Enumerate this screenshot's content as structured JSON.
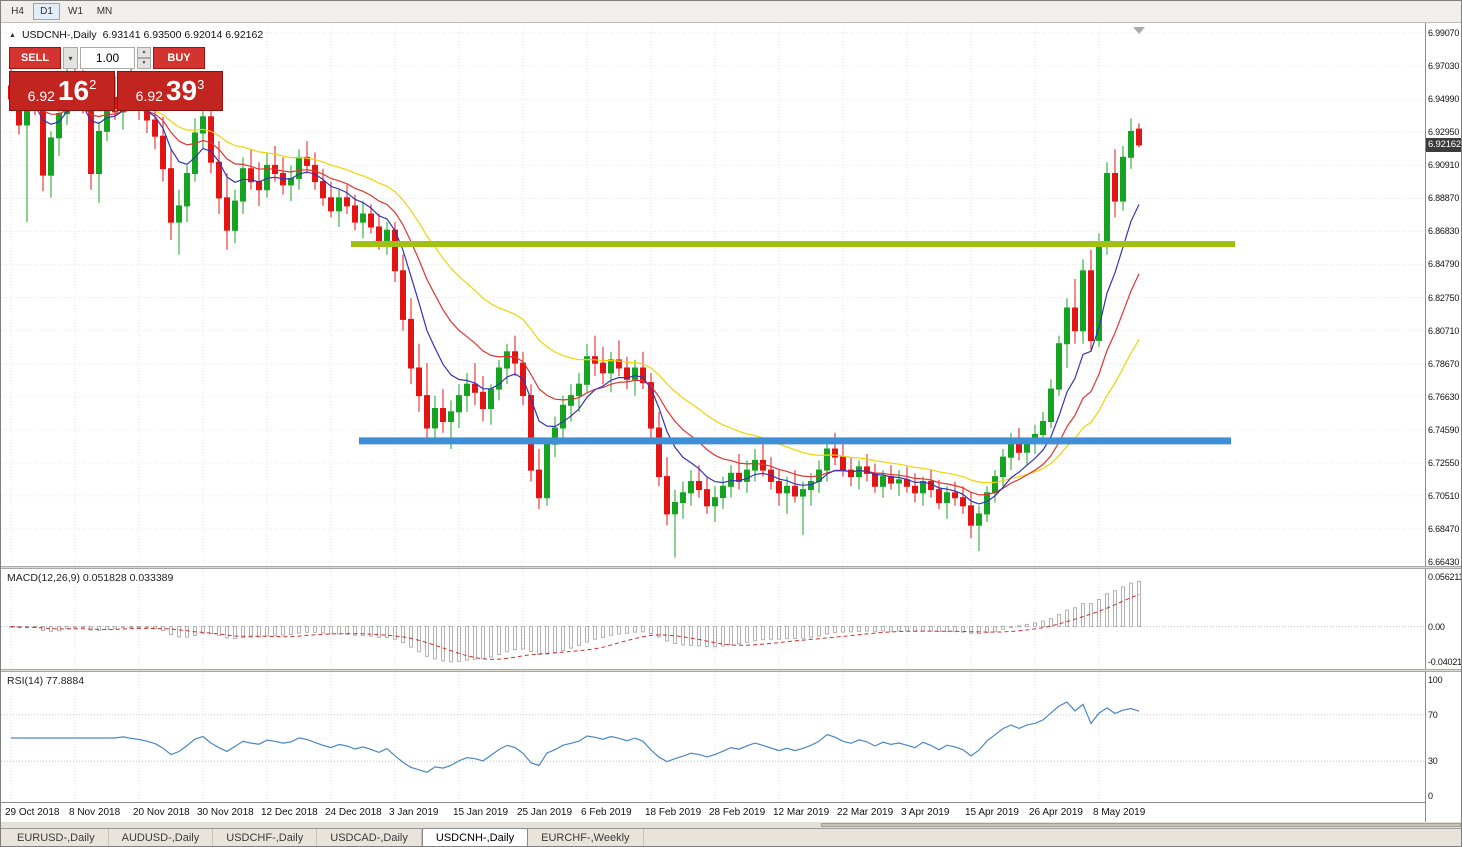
{
  "colors": {
    "bull": "#17a322",
    "bear": "#e31414",
    "macd_hist": "#b2b2b2",
    "macd_signal": "#cf2f2a",
    "rsi_line": "#4a86c6",
    "grid": "#e6e6e6",
    "trade_red": "#c2251f",
    "price_badge_bg": "#3c3c3c"
  },
  "icons": {
    "caret_down": "▾",
    "up": "▲",
    "down": "▼",
    "collapse": "▲"
  },
  "toolbar": {
    "timeframes": [
      {
        "label": "H4",
        "active": false
      },
      {
        "label": "D1",
        "active": true
      },
      {
        "label": "W1",
        "active": false
      },
      {
        "label": "MN",
        "active": false
      }
    ]
  },
  "header": {
    "title": "USDCNH-,Daily",
    "ohlc": "6.93141 6.93500 6.92014 6.92162"
  },
  "trade_panel": {
    "sell_label": "SELL",
    "buy_label": "BUY",
    "volume": "1.00",
    "bid": {
      "prefix": "6.92",
      "big": "16",
      "sup": "2"
    },
    "ask": {
      "prefix": "6.92",
      "big": "39",
      "sup": "3"
    }
  },
  "price_marker": "6.92162",
  "indicators": {
    "macd_label": "MACD(12,26,9) 0.051828 0.033389",
    "rsi_label": "RSI(14) 77.8884"
  },
  "price_axis": [
    "6.99070",
    "6.97030",
    "6.94990",
    "6.92950",
    "6.90910",
    "6.88870",
    "6.86830",
    "6.84790",
    "6.82750",
    "6.80710",
    "6.78670",
    "6.76630",
    "6.74590",
    "6.72550",
    "6.70510",
    "6.68470",
    "6.66430"
  ],
  "time_axis": [
    "29 Oct 2018",
    "8 Nov 2018",
    "20 Nov 2018",
    "30 Nov 2018",
    "12 Dec 2018",
    "24 Dec 2018",
    "3 Jan 2019",
    "15 Jan 2019",
    "25 Jan 2019",
    "6 Feb 2019",
    "18 Feb 2019",
    "28 Feb 2019",
    "12 Mar 2019",
    "22 Mar 2019",
    "3 Apr 2019",
    "15 Apr 2019",
    "26 Apr 2019",
    "8 May 2019"
  ],
  "macd": {
    "axis_values": [
      "0.056211",
      "0.00",
      "-0.040218"
    ]
  },
  "rsi": {
    "axis_values": [
      "100",
      "70",
      "30",
      "0"
    ]
  },
  "tabs": [
    {
      "label": "EURUSD-,Daily",
      "active": false
    },
    {
      "label": "AUDUSD-,Daily",
      "active": false
    },
    {
      "label": "USDCHF-,Daily",
      "active": false
    },
    {
      "label": "USDCAD-,Daily",
      "active": false
    },
    {
      "label": "USDCNH-,Daily",
      "active": true
    },
    {
      "label": "EURCHF-,Weekly",
      "active": false
    }
  ],
  "chart_data": {
    "type": "candlestick",
    "symbol": "USDCNH",
    "period": "Daily",
    "scale": {
      "top_price": 6.9907,
      "bottom_price": 6.6643
    },
    "label_every_n_candles": 8,
    "moving_averages": [
      {
        "name": "slow",
        "period": 30,
        "color": "#efd302"
      },
      {
        "name": "medium",
        "period": 16,
        "color": "#e03434"
      },
      {
        "name": "fast",
        "period": 8,
        "color": "#3434b8"
      }
    ],
    "hlines": [
      {
        "name": "resistance",
        "price": 6.8605,
        "color": "#a2c011",
        "from_candle": 42.5,
        "to_candle": 153,
        "thickness": 6
      },
      {
        "name": "support",
        "price": 6.739,
        "color": "#3f8fd6",
        "from_candle": 43.5,
        "to_candle": 152.5,
        "thickness": 7
      }
    ],
    "macd_params": [
      12,
      26,
      9
    ],
    "rsi_period": 14,
    "rsi_levels": [
      70,
      30
    ],
    "candles": [
      [
        6.958,
        6.972,
        6.945,
        6.95
      ],
      [
        6.95,
        6.962,
        6.928,
        6.934
      ],
      [
        6.934,
        6.956,
        6.874,
        6.95
      ],
      [
        6.95,
        6.966,
        6.94,
        6.944
      ],
      [
        6.944,
        6.95,
        6.893,
        6.903
      ],
      [
        6.903,
        6.93,
        6.889,
        6.926
      ],
      [
        6.926,
        6.946,
        6.915,
        6.941
      ],
      [
        6.941,
        6.974,
        6.934,
        6.964
      ],
      [
        6.964,
        6.978,
        6.949,
        6.955
      ],
      [
        6.955,
        6.968,
        6.941,
        6.948
      ],
      [
        6.948,
        6.955,
        6.894,
        6.904
      ],
      [
        6.904,
        6.936,
        6.886,
        6.93
      ],
      [
        6.93,
        6.956,
        6.924,
        6.951
      ],
      [
        6.951,
        6.964,
        6.937,
        6.942
      ],
      [
        6.942,
        6.96,
        6.931,
        6.955
      ],
      [
        6.955,
        6.969,
        6.944,
        6.949
      ],
      [
        6.949,
        6.961,
        6.937,
        6.944
      ],
      [
        6.944,
        6.957,
        6.929,
        6.937
      ],
      [
        6.937,
        6.949,
        6.919,
        6.927
      ],
      [
        6.927,
        6.939,
        6.899,
        6.907
      ],
      [
        6.907,
        6.919,
        6.863,
        6.874
      ],
      [
        6.874,
        6.894,
        6.854,
        6.884
      ],
      [
        6.884,
        6.909,
        6.874,
        6.904
      ],
      [
        6.904,
        6.938,
        6.899,
        6.929
      ],
      [
        6.929,
        6.949,
        6.919,
        6.939
      ],
      [
        6.939,
        6.944,
        6.904,
        6.911
      ],
      [
        6.911,
        6.924,
        6.879,
        6.889
      ],
      [
        6.889,
        6.904,
        6.857,
        6.869
      ],
      [
        6.869,
        6.894,
        6.861,
        6.887
      ],
      [
        6.887,
        6.914,
        6.879,
        6.907
      ],
      [
        6.907,
        6.919,
        6.894,
        6.899
      ],
      [
        6.899,
        6.911,
        6.884,
        6.894
      ],
      [
        6.894,
        6.917,
        6.889,
        6.909
      ],
      [
        6.909,
        6.921,
        6.899,
        6.904
      ],
      [
        6.904,
        6.914,
        6.891,
        6.897
      ],
      [
        6.897,
        6.909,
        6.887,
        6.901
      ],
      [
        6.901,
        6.919,
        6.894,
        6.914
      ],
      [
        6.914,
        6.924,
        6.904,
        6.909
      ],
      [
        6.909,
        6.917,
        6.894,
        6.899
      ],
      [
        6.899,
        6.907,
        6.884,
        6.889
      ],
      [
        6.889,
        6.899,
        6.877,
        6.881
      ],
      [
        6.881,
        6.894,
        6.871,
        6.889
      ],
      [
        6.889,
        6.897,
        6.879,
        6.884
      ],
      [
        6.884,
        6.891,
        6.869,
        6.874
      ],
      [
        6.874,
        6.887,
        6.864,
        6.879
      ],
      [
        6.879,
        6.885,
        6.867,
        6.871
      ],
      [
        6.871,
        6.879,
        6.857,
        6.861
      ],
      [
        6.861,
        6.874,
        6.854,
        6.869
      ],
      [
        6.869,
        6.874,
        6.837,
        6.844
      ],
      [
        6.844,
        6.854,
        6.807,
        6.814
      ],
      [
        6.814,
        6.827,
        6.774,
        6.784
      ],
      [
        6.784,
        6.799,
        6.757,
        6.767
      ],
      [
        6.767,
        6.787,
        6.739,
        6.747
      ],
      [
        6.747,
        6.767,
        6.737,
        6.759
      ],
      [
        6.759,
        6.771,
        6.744,
        6.751
      ],
      [
        6.751,
        6.764,
        6.734,
        6.757
      ],
      [
        6.757,
        6.774,
        6.747,
        6.767
      ],
      [
        6.767,
        6.781,
        6.757,
        6.774
      ],
      [
        6.774,
        6.787,
        6.761,
        6.769
      ],
      [
        6.769,
        6.779,
        6.751,
        6.759
      ],
      [
        6.759,
        6.774,
        6.749,
        6.771
      ],
      [
        6.771,
        6.789,
        6.764,
        6.784
      ],
      [
        6.784,
        6.799,
        6.774,
        6.794
      ],
      [
        6.794,
        6.804,
        6.779,
        6.787
      ],
      [
        6.787,
        6.794,
        6.761,
        6.767
      ],
      [
        6.767,
        6.774,
        6.714,
        6.721
      ],
      [
        6.721,
        6.734,
        6.697,
        6.704
      ],
      [
        6.704,
        6.741,
        6.699,
        6.737
      ],
      [
        6.737,
        6.754,
        6.729,
        6.747
      ],
      [
        6.747,
        6.767,
        6.741,
        6.761
      ],
      [
        6.761,
        6.774,
        6.751,
        6.767
      ],
      [
        6.767,
        6.781,
        6.757,
        6.774
      ],
      [
        6.774,
        6.799,
        6.769,
        6.791
      ],
      [
        6.791,
        6.804,
        6.779,
        6.787
      ],
      [
        6.787,
        6.797,
        6.774,
        6.781
      ],
      [
        6.781,
        6.794,
        6.769,
        6.789
      ],
      [
        6.789,
        6.801,
        6.779,
        6.784
      ],
      [
        6.784,
        6.791,
        6.771,
        6.777
      ],
      [
        6.777,
        6.789,
        6.767,
        6.784
      ],
      [
        6.784,
        6.794,
        6.771,
        6.775
      ],
      [
        6.775,
        6.781,
        6.739,
        6.747
      ],
      [
        6.747,
        6.757,
        6.711,
        6.717
      ],
      [
        6.717,
        6.729,
        6.687,
        6.694
      ],
      [
        6.694,
        6.709,
        6.667,
        6.701
      ],
      [
        6.701,
        6.714,
        6.691,
        6.707
      ],
      [
        6.707,
        6.721,
        6.699,
        6.714
      ],
      [
        6.714,
        6.724,
        6.704,
        6.709
      ],
      [
        6.709,
        6.717,
        6.694,
        6.699
      ],
      [
        6.699,
        6.711,
        6.689,
        6.704
      ],
      [
        6.704,
        6.717,
        6.697,
        6.711
      ],
      [
        6.711,
        6.724,
        6.704,
        6.719
      ],
      [
        6.719,
        6.731,
        6.709,
        6.714
      ],
      [
        6.714,
        6.727,
        6.707,
        6.721
      ],
      [
        6.721,
        6.734,
        6.714,
        6.727
      ],
      [
        6.727,
        6.737,
        6.717,
        6.721
      ],
      [
        6.721,
        6.729,
        6.709,
        6.714
      ],
      [
        6.714,
        6.721,
        6.699,
        6.707
      ],
      [
        6.707,
        6.717,
        6.694,
        6.711
      ],
      [
        6.711,
        6.721,
        6.701,
        6.705
      ],
      [
        6.705,
        6.714,
        6.681,
        6.709
      ],
      [
        6.709,
        6.719,
        6.699,
        6.714
      ],
      [
        6.714,
        6.727,
        6.707,
        6.721
      ],
      [
        6.721,
        6.739,
        6.714,
        6.734
      ],
      [
        6.734,
        6.744,
        6.724,
        6.729
      ],
      [
        6.729,
        6.737,
        6.717,
        6.721
      ],
      [
        6.721,
        6.729,
        6.711,
        6.717
      ],
      [
        6.717,
        6.727,
        6.709,
        6.723
      ],
      [
        6.723,
        6.731,
        6.714,
        6.719
      ],
      [
        6.719,
        6.725,
        6.707,
        6.711
      ],
      [
        6.711,
        6.721,
        6.704,
        6.717
      ],
      [
        6.717,
        6.724,
        6.709,
        6.713
      ],
      [
        6.713,
        6.721,
        6.705,
        6.715
      ],
      [
        6.715,
        6.723,
        6.707,
        6.711
      ],
      [
        6.711,
        6.719,
        6.701,
        6.707
      ],
      [
        6.707,
        6.717,
        6.699,
        6.714
      ],
      [
        6.714,
        6.721,
        6.704,
        6.709
      ],
      [
        6.709,
        6.715,
        6.697,
        6.701
      ],
      [
        6.701,
        6.711,
        6.691,
        6.707
      ],
      [
        6.707,
        6.714,
        6.699,
        6.704
      ],
      [
        6.704,
        6.711,
        6.694,
        6.699
      ],
      [
        6.699,
        6.707,
        6.679,
        6.687
      ],
      [
        6.687,
        6.699,
        6.671,
        6.694
      ],
      [
        6.694,
        6.711,
        6.689,
        6.707
      ],
      [
        6.707,
        6.721,
        6.701,
        6.717
      ],
      [
        6.717,
        6.734,
        6.711,
        6.729
      ],
      [
        6.729,
        6.744,
        6.721,
        6.737
      ],
      [
        6.737,
        6.747,
        6.727,
        6.732
      ],
      [
        6.732,
        6.741,
        6.724,
        6.739
      ],
      [
        6.739,
        6.749,
        6.731,
        6.743
      ],
      [
        6.743,
        6.757,
        6.737,
        6.751
      ],
      [
        6.751,
        6.777,
        6.747,
        6.771
      ],
      [
        6.771,
        6.804,
        6.767,
        6.799
      ],
      [
        6.799,
        6.827,
        6.784,
        6.821
      ],
      [
        6.821,
        6.839,
        6.799,
        6.807
      ],
      [
        6.807,
        6.851,
        6.799,
        6.844
      ],
      [
        6.844,
        6.857,
        6.794,
        6.801
      ],
      [
        6.801,
        6.867,
        6.797,
        6.861
      ],
      [
        6.861,
        6.911,
        6.854,
        6.904
      ],
      [
        6.904,
        6.919,
        6.877,
        6.887
      ],
      [
        6.887,
        6.921,
        6.881,
        6.914
      ],
      [
        6.914,
        6.938,
        6.907,
        6.93
      ],
      [
        6.9314,
        6.935,
        6.9201,
        6.9216
      ]
    ]
  }
}
